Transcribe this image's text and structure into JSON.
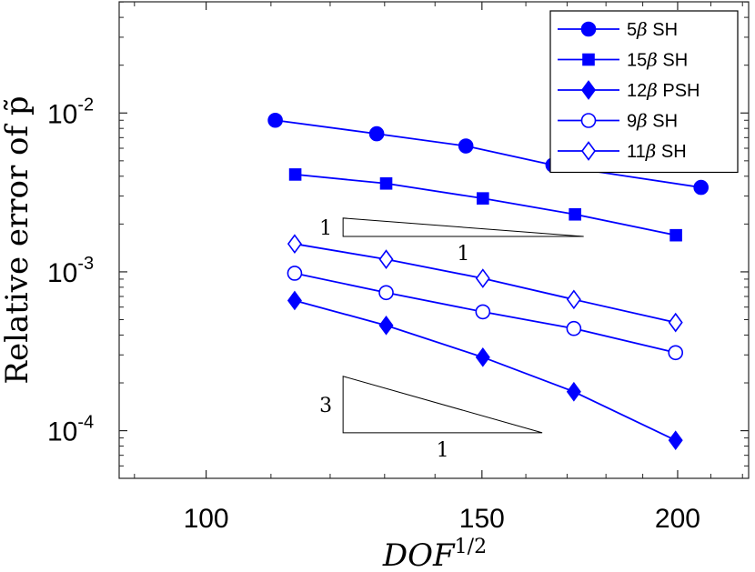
{
  "chart_data": {
    "type": "line",
    "xscale": "log",
    "yscale": "log",
    "xlabel": "DOF^{1/2}",
    "xlabel_base": "DOF",
    "xlabel_exp": "1/2",
    "ylabel": "Relative error of p̃",
    "xlim": [
      88,
      222
    ],
    "ylim_exp": [
      -4.3,
      -1.3
    ],
    "xticks": [
      100,
      150,
      200
    ],
    "xtick_labels": [
      "100",
      "150",
      "200"
    ],
    "yticks_exp": [
      -4,
      -3,
      -2
    ],
    "ytick_labels": [
      {
        "base": "10",
        "exp": "-4"
      },
      {
        "base": "10",
        "exp": "-3"
      },
      {
        "base": "10",
        "exp": "-2"
      }
    ],
    "legend_position": "top-right",
    "series": [
      {
        "name": "5β SH",
        "label_pre": "5",
        "label_post": " SH",
        "marker": "circle",
        "filled": true,
        "x": [
          110.7,
          128.5,
          146.5,
          166.5,
          207.0
        ],
        "y": [
          0.009,
          0.0074,
          0.0062,
          0.0047,
          0.0034
        ]
      },
      {
        "name": "15β SH",
        "label_pre": "15",
        "label_post": " SH",
        "marker": "square",
        "filled": true,
        "x": [
          114.0,
          130.3,
          150.2,
          172.0,
          199.5
        ],
        "y": [
          0.0041,
          0.0036,
          0.0029,
          0.0023,
          0.0017
        ]
      },
      {
        "name": "12β PSH",
        "label_pre": "12",
        "label_post": " PSH",
        "marker": "diamond",
        "filled": true,
        "x": [
          113.9,
          130.3,
          150.2,
          171.7,
          199.4
        ],
        "y": [
          0.00066,
          0.00046,
          0.00029,
          0.000176,
          8.7e-05
        ]
      },
      {
        "name": "9β SH",
        "label_pre": "9",
        "label_post": " SH",
        "marker": "circle",
        "filled": false,
        "x": [
          113.9,
          130.3,
          150.2,
          171.7,
          199.4
        ],
        "y": [
          0.00098,
          0.00074,
          0.00056,
          0.00044,
          0.00031
        ]
      },
      {
        "name": "11β SH",
        "label_pre": "11",
        "label_post": " SH",
        "marker": "diamond",
        "filled": false,
        "x": [
          113.9,
          130.3,
          150.2,
          171.7,
          199.4
        ],
        "y": [
          0.0015,
          0.0012,
          0.00091,
          0.00067,
          0.00048
        ]
      }
    ],
    "slope_triangles": [
      {
        "rise_label": "1",
        "run_label": "1",
        "x_start": 122.3,
        "x_end": 174.2,
        "y_low": 0.00167,
        "y_high": 0.00218
      },
      {
        "rise_label": "3",
        "run_label": "1",
        "x_start": 122.3,
        "x_end": 163.9,
        "y_low": 9.7e-05,
        "y_high": 0.00022
      }
    ],
    "colors": {
      "series": "#0000ff",
      "axes": "#262626",
      "triangle": "#000000"
    }
  }
}
